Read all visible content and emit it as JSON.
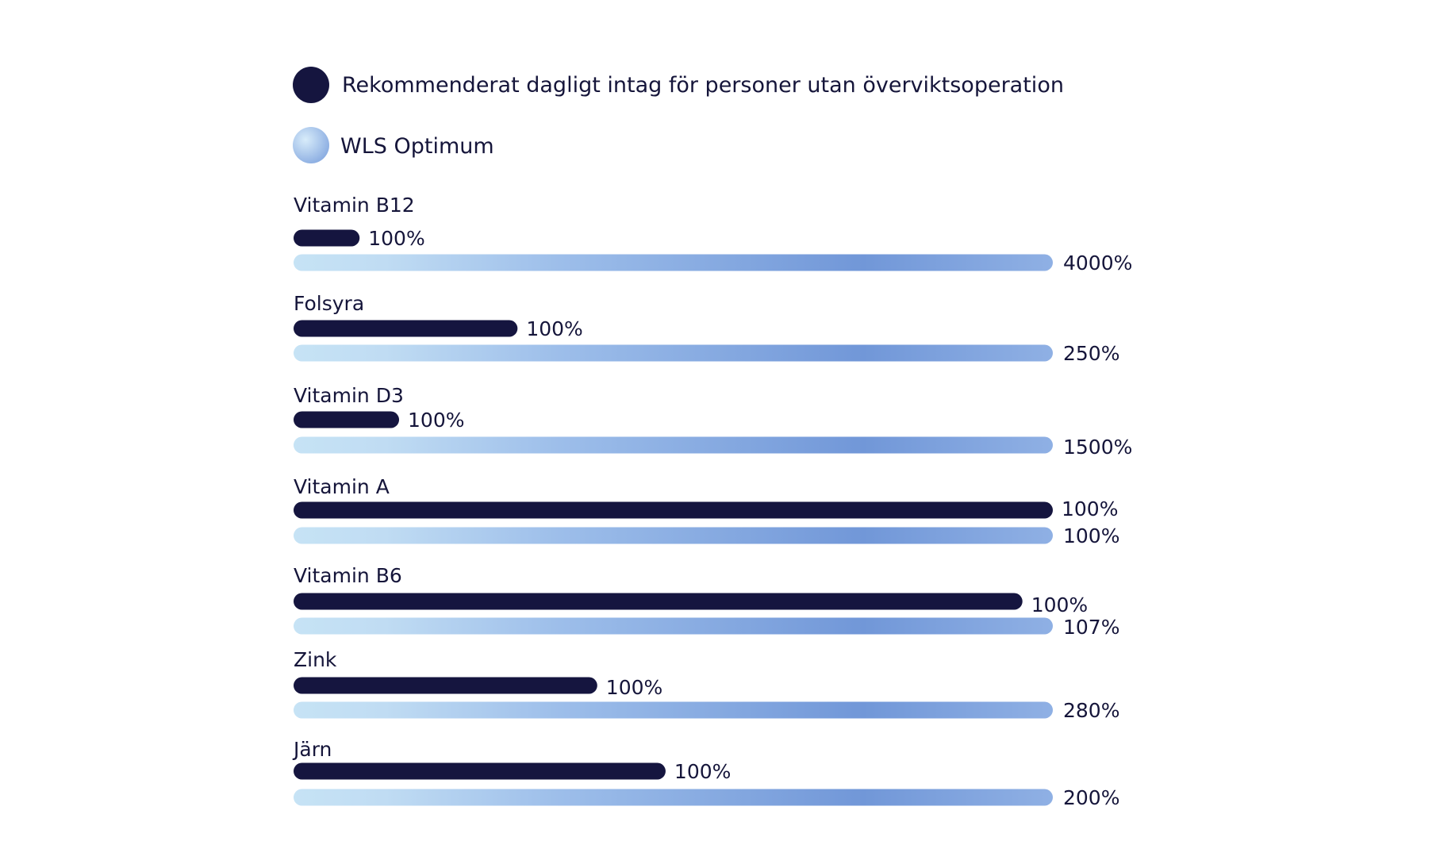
{
  "chart_data": {
    "type": "bar",
    "orientation": "horizontal",
    "legend": [
      {
        "label": "Rekommenderat dagligt intag för personer utan överviktsoperation",
        "color": "#15153f"
      },
      {
        "label": "WLS Optimum",
        "color": "#8fb3e6"
      }
    ],
    "categories": [
      "Vitamin B12",
      "Folsyra",
      "Vitamin D3",
      "Vitamin A",
      "Vitamin B6",
      "Zink",
      "Järn"
    ],
    "series": [
      {
        "name": "Rekommenderat dagligt intag för personer utan överviktsoperation",
        "values": [
          100,
          100,
          100,
          100,
          100,
          100,
          100
        ],
        "value_labels": [
          "100%",
          "100%",
          "100%",
          "100%",
          "100%",
          "100%",
          "100%"
        ],
        "fill_relative_to_wls": [
          0.087,
          0.295,
          0.139,
          1.0,
          0.96,
          0.4,
          0.49
        ]
      },
      {
        "name": "WLS Optimum",
        "values": [
          4000,
          250,
          1500,
          100,
          107,
          280,
          200
        ],
        "value_labels": [
          "4000%",
          "250%",
          "1500%",
          "100%",
          "107%",
          "280%",
          "200%"
        ]
      }
    ],
    "legend_placement": "top-left",
    "grid": false,
    "colors": {
      "dark": "#15153f",
      "light_start": "#c6e2f4",
      "light_mid": "#8fb3e6",
      "light_end": "#6a90d6"
    }
  }
}
